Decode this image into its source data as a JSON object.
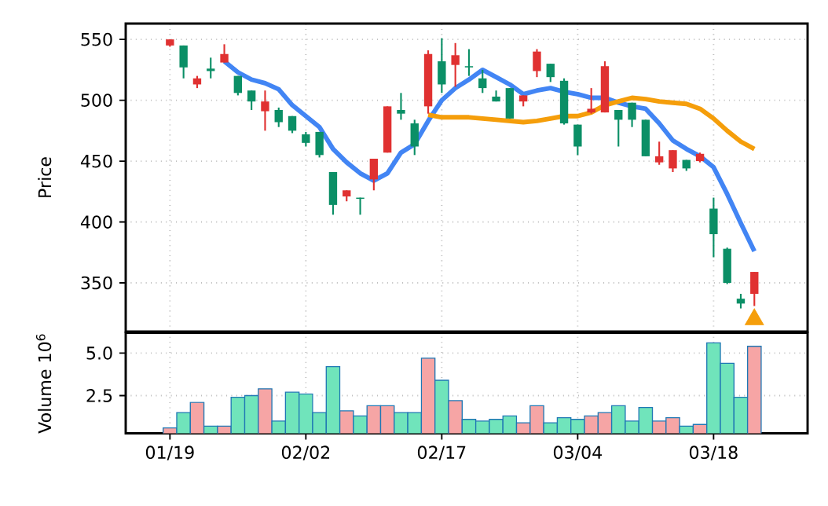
{
  "chart_data": [
    {
      "type": "candlestick",
      "ylabel": "Price",
      "grid": true,
      "tick_labels": "y",
      "ylim": [
        310,
        563
      ],
      "yticks": [
        350,
        400,
        450,
        500,
        550
      ],
      "categories": [
        null,
        null,
        null,
        null,
        null,
        null,
        null,
        null,
        null,
        null,
        null,
        null,
        null,
        null,
        null,
        null,
        null,
        null,
        null,
        null,
        null,
        null,
        null,
        null,
        null,
        null,
        null,
        null,
        null,
        null,
        null,
        null,
        null,
        null,
        null,
        null,
        null,
        null,
        null,
        null,
        null,
        null,
        null,
        null
      ],
      "ohlc": [
        [
          550,
          550,
          544,
          545
        ],
        [
          527,
          545,
          518,
          545
        ],
        [
          518,
          520,
          510,
          513
        ],
        [
          524,
          535,
          518,
          526
        ],
        [
          538,
          546,
          531,
          531
        ],
        [
          506,
          520,
          504,
          520
        ],
        [
          499,
          508,
          492,
          508
        ],
        [
          499,
          508,
          475,
          491
        ],
        [
          482,
          494,
          478,
          492
        ],
        [
          475,
          487,
          473,
          487
        ],
        [
          465,
          474,
          462,
          472
        ],
        [
          455,
          474,
          453,
          474
        ],
        [
          414,
          441,
          406,
          441
        ],
        [
          426,
          426,
          417,
          421
        ],
        [
          419,
          420,
          406,
          420
        ],
        [
          452,
          452,
          426,
          435
        ],
        [
          495,
          495,
          457,
          457
        ],
        [
          489,
          506,
          484,
          492
        ],
        [
          462,
          484,
          455,
          481
        ],
        [
          538,
          541,
          489,
          495
        ],
        [
          513,
          551,
          506,
          532
        ],
        [
          537,
          547,
          511,
          529
        ],
        [
          527,
          542,
          520,
          528
        ],
        [
          510,
          525,
          506,
          518
        ],
        [
          499,
          508,
          499,
          503
        ],
        [
          485,
          510,
          485,
          510
        ],
        [
          504,
          504,
          495,
          499
        ],
        [
          540,
          542,
          519,
          524
        ],
        [
          519,
          530,
          515,
          530
        ],
        [
          481,
          518,
          480,
          516
        ],
        [
          462,
          480,
          455,
          480
        ],
        [
          493,
          510,
          489,
          490
        ],
        [
          528,
          532,
          490,
          490
        ],
        [
          484,
          492,
          462,
          492
        ],
        [
          484,
          498,
          478,
          498
        ],
        [
          454,
          484,
          454,
          484
        ],
        [
          454,
          466,
          447,
          449
        ],
        [
          459,
          459,
          441,
          444
        ],
        [
          444,
          451,
          442,
          451
        ],
        [
          456,
          457,
          449,
          450
        ],
        [
          390,
          420,
          371,
          411
        ],
        [
          350,
          379,
          349,
          378
        ],
        [
          333,
          341,
          329,
          337
        ],
        [
          359,
          359,
          331,
          341
        ]
      ],
      "colors": [
        "#e03131",
        "#0b8f66",
        "#e03131",
        "#0b8f66",
        "#e03131",
        "#0b8f66",
        "#0b8f66",
        "#e03131",
        "#0b8f66",
        "#0b8f66",
        "#0b8f66",
        "#0b8f66",
        "#0b8f66",
        "#e03131",
        "#0b8f66",
        "#e03131",
        "#e03131",
        "#0b8f66",
        "#0b8f66",
        "#e03131",
        "#0b8f66",
        "#e03131",
        "#0b8f66",
        "#0b8f66",
        "#0b8f66",
        "#0b8f66",
        "#e03131",
        "#e03131",
        "#0b8f66",
        "#0b8f66",
        "#0b8f66",
        "#e03131",
        "#e03131",
        "#0b8f66",
        "#0b8f66",
        "#0b8f66",
        "#e03131",
        "#e03131",
        "#0b8f66",
        "#e03131",
        "#0b8f66",
        "#0b8f66",
        "#0b8f66",
        "#e03131"
      ],
      "series": [
        {
          "type": "line",
          "color": "#4285f4",
          "values": [
            null,
            null,
            null,
            null,
            532,
            523,
            517,
            514,
            509,
            496,
            487,
            478,
            460,
            449,
            440,
            434,
            440,
            457,
            464,
            483,
            500,
            510,
            517,
            525,
            519,
            513,
            505,
            508,
            510,
            507,
            505,
            502,
            502,
            498,
            495,
            493,
            481,
            467,
            460,
            454,
            445,
            423,
            399,
            376
          ]
        },
        {
          "type": "line",
          "color": "#f59e0b",
          "values": [
            null,
            null,
            null,
            null,
            null,
            null,
            null,
            null,
            null,
            null,
            null,
            null,
            null,
            null,
            null,
            null,
            null,
            null,
            null,
            488,
            486,
            486,
            486,
            485,
            484,
            483,
            482,
            483,
            485,
            487,
            487,
            490,
            496,
            499,
            502,
            501,
            499,
            498,
            497,
            493,
            485,
            475,
            466,
            460
          ]
        },
        {
          "type": "scatter",
          "color": "#f59e0b",
          "marker": "triangle",
          "values": [
            null,
            null,
            null,
            null,
            null,
            null,
            null,
            null,
            null,
            null,
            null,
            null,
            null,
            null,
            null,
            null,
            null,
            null,
            null,
            null,
            null,
            null,
            null,
            null,
            null,
            null,
            null,
            null,
            null,
            null,
            null,
            null,
            null,
            null,
            null,
            null,
            null,
            null,
            null,
            null,
            null,
            null,
            null,
            320
          ]
        }
      ]
    },
    {
      "type": "bar",
      "ylabel": "Volume 10$^{6}$",
      "grid": true,
      "ylim": [
        0.28,
        6.2
      ],
      "yticks": [
        {
          "value": 2.5,
          "label": "2.5"
        },
        {
          "value": 5,
          "label": "5.0"
        }
      ],
      "categories": [
        "01/19",
        null,
        null,
        null,
        null,
        null,
        null,
        null,
        null,
        null,
        "02/02",
        null,
        null,
        null,
        null,
        null,
        null,
        null,
        null,
        null,
        "02/17",
        null,
        null,
        null,
        null,
        null,
        null,
        null,
        null,
        null,
        "03/04",
        null,
        null,
        null,
        null,
        null,
        null,
        null,
        null,
        null,
        "03/18",
        null,
        null,
        null
      ],
      "values": [
        0.6,
        1.5,
        2.1,
        0.7,
        0.7,
        2.4,
        2.5,
        2.9,
        1,
        2.7,
        2.6,
        1.5,
        4.2,
        1.6,
        1.3,
        1.9,
        1.9,
        1.5,
        1.5,
        4.7,
        3.4,
        2.2,
        1.1,
        1,
        1.1,
        1.3,
        0.9,
        1.9,
        0.9,
        1.2,
        1.1,
        1.3,
        1.5,
        1.9,
        1,
        1.8,
        1,
        1.2,
        0.7,
        0.8,
        5.6,
        4.4,
        2.4,
        5.4
      ],
      "colors": [
        "#f6a5a5",
        "#70e4bb",
        "#f6a5a5",
        "#70e4bb",
        "#f6a5a5",
        "#70e4bb",
        "#70e4bb",
        "#f6a5a5",
        "#70e4bb",
        "#70e4bb",
        "#70e4bb",
        "#70e4bb",
        "#70e4bb",
        "#f6a5a5",
        "#70e4bb",
        "#f6a5a5",
        "#f6a5a5",
        "#70e4bb",
        "#70e4bb",
        "#f6a5a5",
        "#70e4bb",
        "#f6a5a5",
        "#70e4bb",
        "#70e4bb",
        "#70e4bb",
        "#70e4bb",
        "#f6a5a5",
        "#f6a5a5",
        "#70e4bb",
        "#70e4bb",
        "#70e4bb",
        "#f6a5a5",
        "#f6a5a5",
        "#70e4bb",
        "#70e4bb",
        "#70e4bb",
        "#f6a5a5",
        "#f6a5a5",
        "#70e4bb",
        "#f6a5a5",
        "#70e4bb",
        "#70e4bb",
        "#70e4bb",
        "#f6a5a5"
      ]
    }
  ]
}
